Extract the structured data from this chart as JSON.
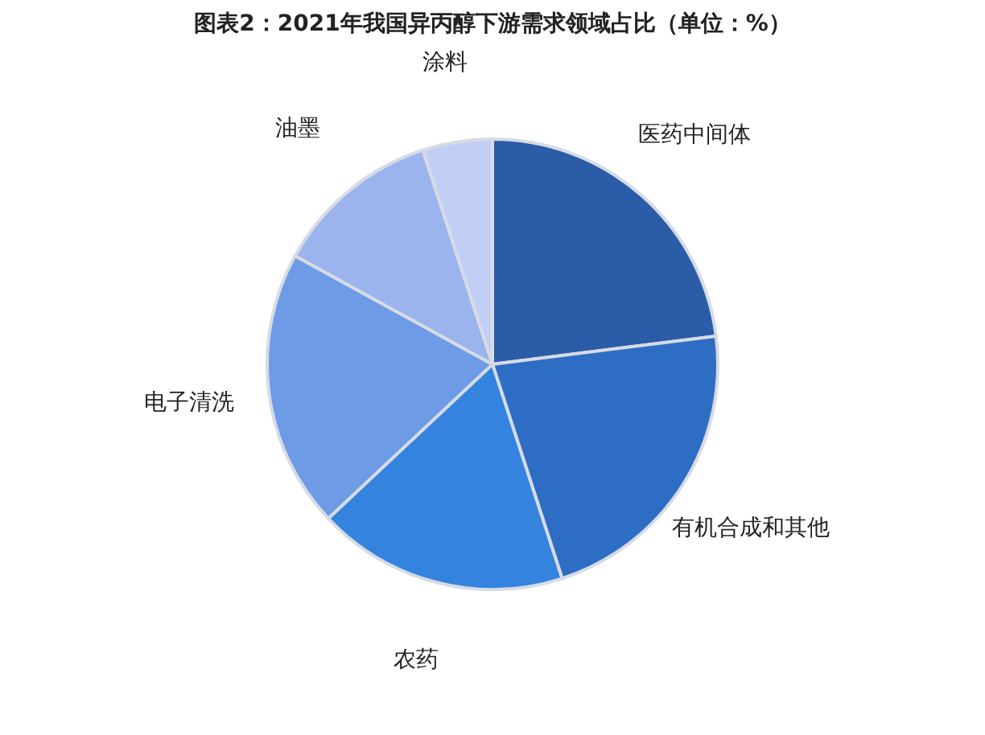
{
  "chart_data": {
    "type": "pie",
    "title": "图表2：2021年我国异丙醇下游需求领域占比（单位：%）",
    "categories": [
      "医药中间体",
      "有机合成和其他",
      "农药",
      "电子清洗",
      "油墨",
      "涂料"
    ],
    "values": [
      23,
      22,
      18,
      20,
      12,
      5
    ],
    "colors": [
      "#2a5ca8",
      "#2e6dc4",
      "#3483de",
      "#6d9be6",
      "#9cb4ee",
      "#c2cff4"
    ],
    "legend": false
  }
}
